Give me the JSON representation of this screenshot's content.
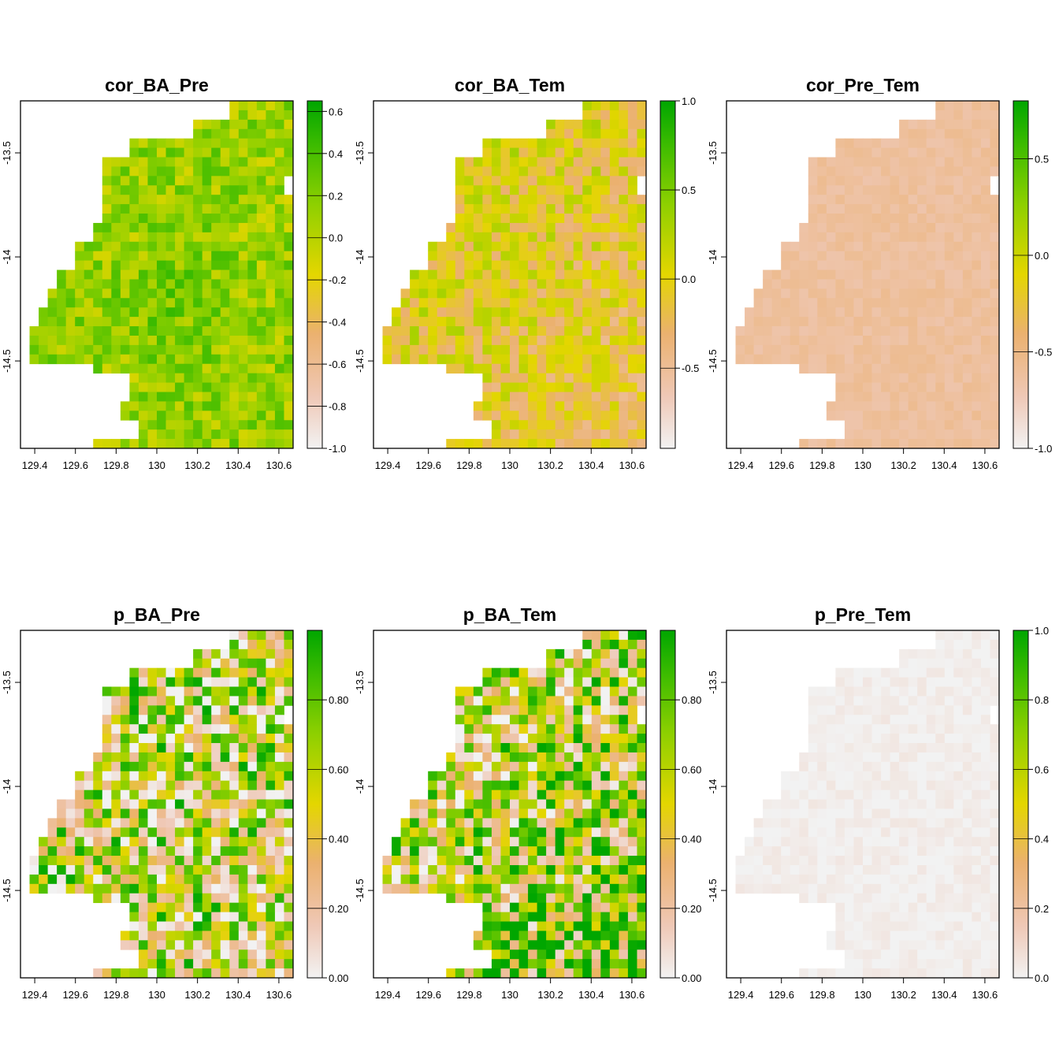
{
  "chart_data": [
    {
      "type": "heatmap",
      "title": "cor_BA_Pre",
      "x_ticks": [
        "129.4",
        "129.6",
        "129.8",
        "130",
        "130.2",
        "130.4",
        "130.6"
      ],
      "y_ticks": [
        "-13.5",
        "-14",
        "-14.5"
      ],
      "colorbar_ticks": [
        "0.6",
        "0.4",
        "0.2",
        "0.0",
        "-0.2",
        "-0.4",
        "-0.6",
        "-0.8",
        "-1.0"
      ],
      "colorbar_range": [
        -1.0,
        0.65
      ],
      "field": {
        "base": 0.12,
        "noise": 0.26,
        "hotspot": 0.1,
        "seed": 11
      }
    },
    {
      "type": "heatmap",
      "title": "cor_BA_Tem",
      "x_ticks": [
        "129.4",
        "129.6",
        "129.8",
        "130",
        "130.2",
        "130.4",
        "130.6"
      ],
      "y_ticks": [
        "-13.5",
        "-14",
        "-14.5"
      ],
      "colorbar_ticks": [
        "1.0",
        "0.5",
        "0.0",
        "-0.5"
      ],
      "colorbar_range": [
        -0.95,
        1.0
      ],
      "field": {
        "base": -0.05,
        "noise": 0.32,
        "gradient": -0.35,
        "seed": 23
      }
    },
    {
      "type": "heatmap",
      "title": "cor_Pre_Tem",
      "x_ticks": [
        "129.4",
        "129.6",
        "129.8",
        "130",
        "130.2",
        "130.4",
        "130.6"
      ],
      "y_ticks": [
        "-13.5",
        "-14",
        "-14.5"
      ],
      "colorbar_ticks": [
        "0.5",
        "0.0",
        "-0.5",
        "-1.0"
      ],
      "colorbar_range": [
        -1.0,
        0.8
      ],
      "field": {
        "base": -0.62,
        "noise": 0.06,
        "seed": 37
      }
    },
    {
      "type": "heatmap",
      "title": "p_BA_Pre",
      "x_ticks": [
        "129.4",
        "129.6",
        "129.8",
        "130",
        "130.2",
        "130.4",
        "130.6"
      ],
      "y_ticks": [
        "-13.5",
        "-14",
        "-14.5"
      ],
      "colorbar_ticks": [
        "0.80",
        "0.60",
        "0.40",
        "0.20",
        "0.00"
      ],
      "colorbar_range": [
        0.0,
        1.0
      ],
      "field": {
        "base": 0.45,
        "noise": 0.55,
        "seed": 53
      }
    },
    {
      "type": "heatmap",
      "title": "p_BA_Tem",
      "x_ticks": [
        "129.4",
        "129.6",
        "129.8",
        "130",
        "130.2",
        "130.4",
        "130.6"
      ],
      "y_ticks": [
        "-13.5",
        "-14",
        "-14.5"
      ],
      "colorbar_ticks": [
        "0.80",
        "0.60",
        "0.40",
        "0.20",
        "0.00"
      ],
      "colorbar_range": [
        0.0,
        1.0
      ],
      "field": {
        "base": 0.5,
        "noise": 0.55,
        "gradient": 0.4,
        "seed": 71
      }
    },
    {
      "type": "heatmap",
      "title": "p_Pre_Tem",
      "x_ticks": [
        "129.4",
        "129.6",
        "129.8",
        "130",
        "130.2",
        "130.4",
        "130.6"
      ],
      "y_ticks": [
        "-13.5",
        "-14",
        "-14.5"
      ],
      "colorbar_ticks": [
        "1.0",
        "0.8",
        "0.6",
        "0.4",
        "0.2",
        "0.0"
      ],
      "colorbar_range": [
        0.0,
        1.0
      ],
      "field": {
        "base": 0.015,
        "noise": 0.03,
        "seed": 89
      }
    }
  ]
}
